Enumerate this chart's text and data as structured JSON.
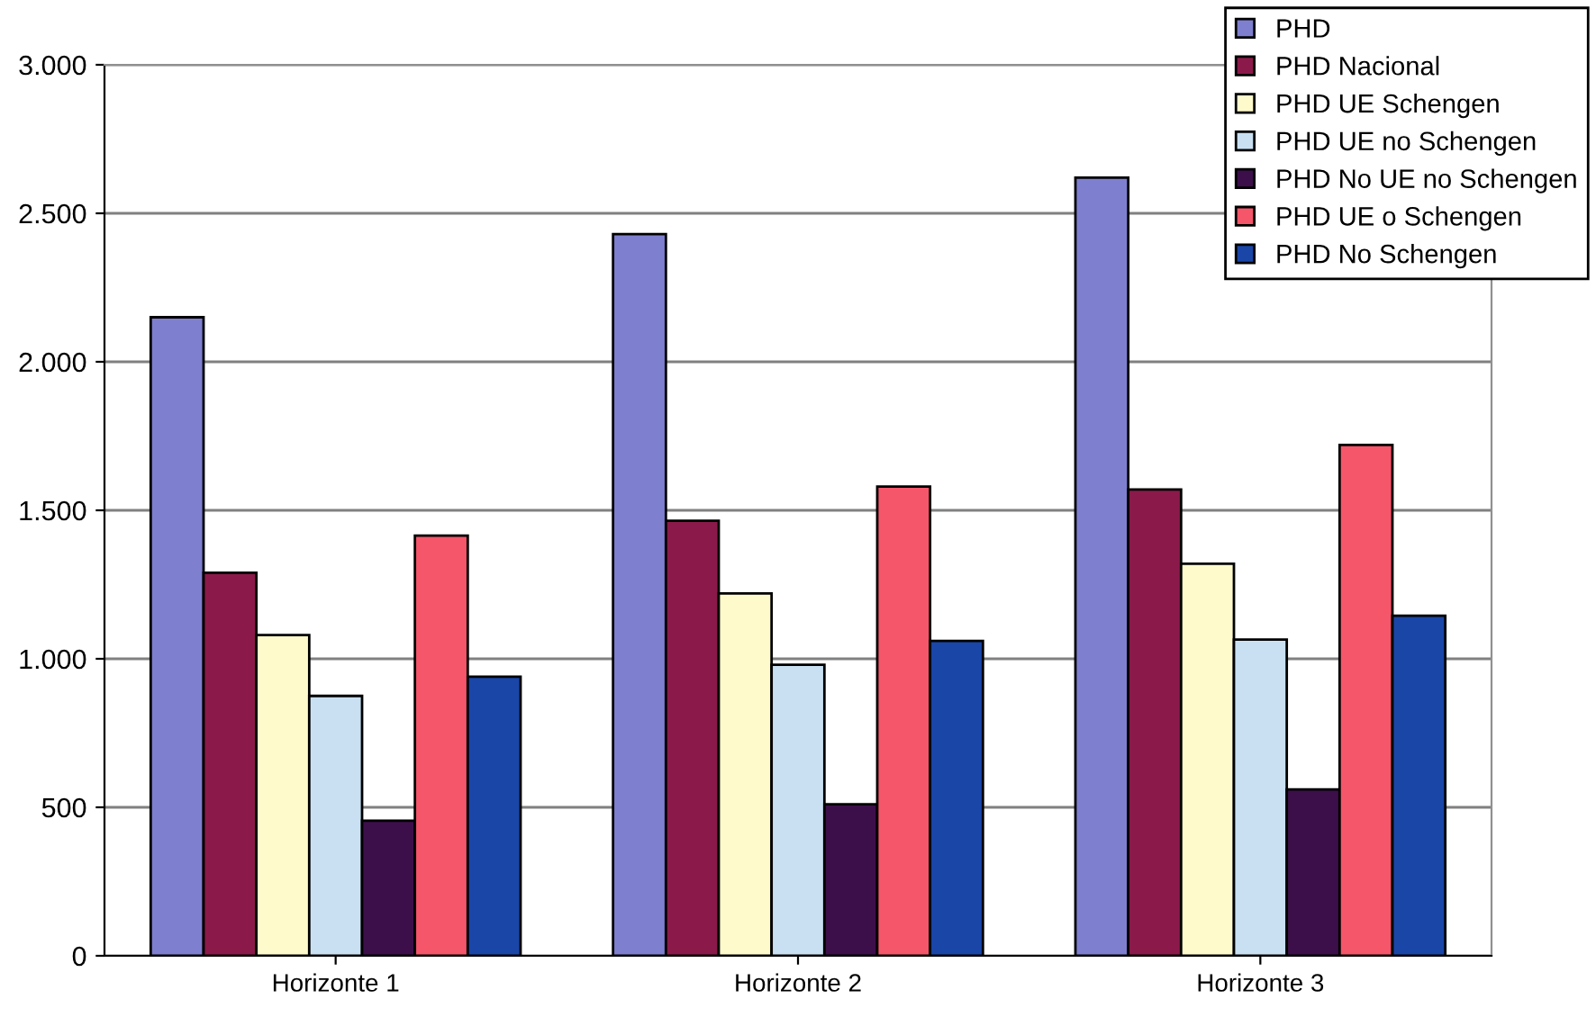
{
  "chart_data": {
    "type": "bar",
    "categories": [
      "Horizonte 1",
      "Horizonte 2",
      "Horizonte 3"
    ],
    "series": [
      {
        "name": "PHD",
        "color": "#7f7fd0",
        "values": [
          2150,
          2430,
          2620
        ]
      },
      {
        "name": "PHD Nacional",
        "color": "#8b1a4a",
        "values": [
          1290,
          1465,
          1570
        ]
      },
      {
        "name": "PHD UE Schengen",
        "color": "#fffacc",
        "values": [
          1080,
          1220,
          1320
        ]
      },
      {
        "name": "PHD UE no Schengen",
        "color": "#c8e0f2",
        "values": [
          875,
          980,
          1065
        ]
      },
      {
        "name": "PHD No UE no Schengen",
        "color": "#3c0f4a",
        "values": [
          455,
          510,
          560
        ]
      },
      {
        "name": "PHD UE o Schengen",
        "color": "#f5566a",
        "values": [
          1415,
          1580,
          1720
        ]
      },
      {
        "name": "PHD No Schengen",
        "color": "#1a46a8",
        "values": [
          940,
          1060,
          1145
        ]
      }
    ],
    "ylim": [
      0,
      3000
    ],
    "yticks": [
      {
        "value": 0,
        "label": "0"
      },
      {
        "value": 500,
        "label": "500"
      },
      {
        "value": 1000,
        "label": "1.000"
      },
      {
        "value": 1500,
        "label": "1.500"
      },
      {
        "value": 2000,
        "label": "2.000"
      },
      {
        "value": 2500,
        "label": "2.500"
      },
      {
        "value": 3000,
        "label": "3.000"
      }
    ],
    "grid": "y",
    "legend": "top right"
  }
}
